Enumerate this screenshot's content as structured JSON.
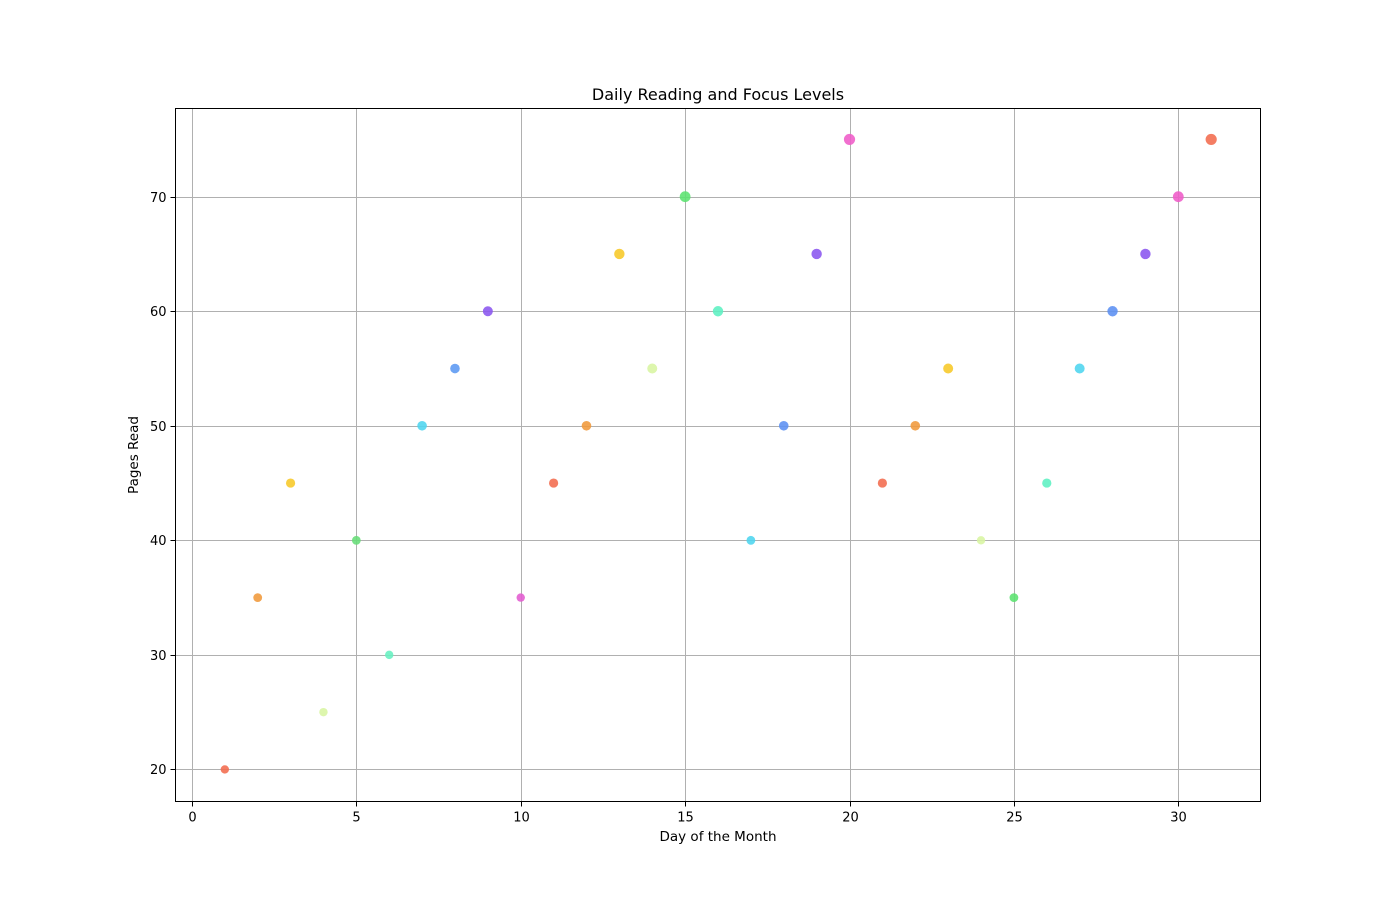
{
  "chart_data": {
    "type": "scatter",
    "title": "Daily Reading and Focus Levels",
    "xlabel": "Day of the Month",
    "ylabel": "Pages Read",
    "xlim": [
      -0.5,
      32.5
    ],
    "ylim": [
      17.2,
      77.7
    ],
    "xticks": [
      0,
      5,
      10,
      15,
      20,
      25,
      30
    ],
    "yticks": [
      20,
      30,
      40,
      50,
      60,
      70
    ],
    "grid": true,
    "legend": "none",
    "points": [
      {
        "x": 1,
        "y": 20,
        "color": "#f26b4d",
        "size": 0.25
      },
      {
        "x": 2,
        "y": 35,
        "color": "#f0993a",
        "size": 0.3
      },
      {
        "x": 3,
        "y": 45,
        "color": "#f7c827",
        "size": 0.35
      },
      {
        "x": 4,
        "y": 25,
        "color": "#d8f5a2",
        "size": 0.25
      },
      {
        "x": 5,
        "y": 40,
        "color": "#66dd77",
        "size": 0.3
      },
      {
        "x": 6,
        "y": 30,
        "color": "#66f0c0",
        "size": 0.25
      },
      {
        "x": 7,
        "y": 50,
        "color": "#4dd5ef",
        "size": 0.4
      },
      {
        "x": 8,
        "y": 55,
        "color": "#5b99f2",
        "size": 0.4
      },
      {
        "x": 9,
        "y": 60,
        "color": "#8a55ef",
        "size": 0.45
      },
      {
        "x": 10,
        "y": 35,
        "color": "#e35bd0",
        "size": 0.25
      },
      {
        "x": 11,
        "y": 45,
        "color": "#f26b4d",
        "size": 0.35
      },
      {
        "x": 12,
        "y": 50,
        "color": "#f0993a",
        "size": 0.4
      },
      {
        "x": 13,
        "y": 65,
        "color": "#f7c827",
        "size": 0.5
      },
      {
        "x": 14,
        "y": 55,
        "color": "#d8f5a2",
        "size": 0.45
      },
      {
        "x": 15,
        "y": 70,
        "color": "#5be36f",
        "size": 0.55
      },
      {
        "x": 16,
        "y": 60,
        "color": "#5cf0c2",
        "size": 0.5
      },
      {
        "x": 17,
        "y": 40,
        "color": "#4dd5ef",
        "size": 0.3
      },
      {
        "x": 18,
        "y": 50,
        "color": "#5b8ff2",
        "size": 0.4
      },
      {
        "x": 19,
        "y": 65,
        "color": "#8a55ef",
        "size": 0.5
      },
      {
        "x": 20,
        "y": 75,
        "color": "#ef5bc8",
        "size": 0.6
      },
      {
        "x": 21,
        "y": 45,
        "color": "#f26b4d",
        "size": 0.35
      },
      {
        "x": 22,
        "y": 50,
        "color": "#f0993a",
        "size": 0.4
      },
      {
        "x": 23,
        "y": 55,
        "color": "#f7c827",
        "size": 0.45
      },
      {
        "x": 24,
        "y": 40,
        "color": "#d8f5a2",
        "size": 0.25
      },
      {
        "x": 25,
        "y": 35,
        "color": "#5be36f",
        "size": 0.3
      },
      {
        "x": 26,
        "y": 45,
        "color": "#5cf0c2",
        "size": 0.35
      },
      {
        "x": 27,
        "y": 55,
        "color": "#4dd5ef",
        "size": 0.45
      },
      {
        "x": 28,
        "y": 60,
        "color": "#5b8ff2",
        "size": 0.5
      },
      {
        "x": 29,
        "y": 65,
        "color": "#8a55ef",
        "size": 0.5
      },
      {
        "x": 30,
        "y": 70,
        "color": "#ef5bc8",
        "size": 0.55
      },
      {
        "x": 31,
        "y": 75,
        "color": "#f26b4d",
        "size": 0.6
      }
    ]
  }
}
